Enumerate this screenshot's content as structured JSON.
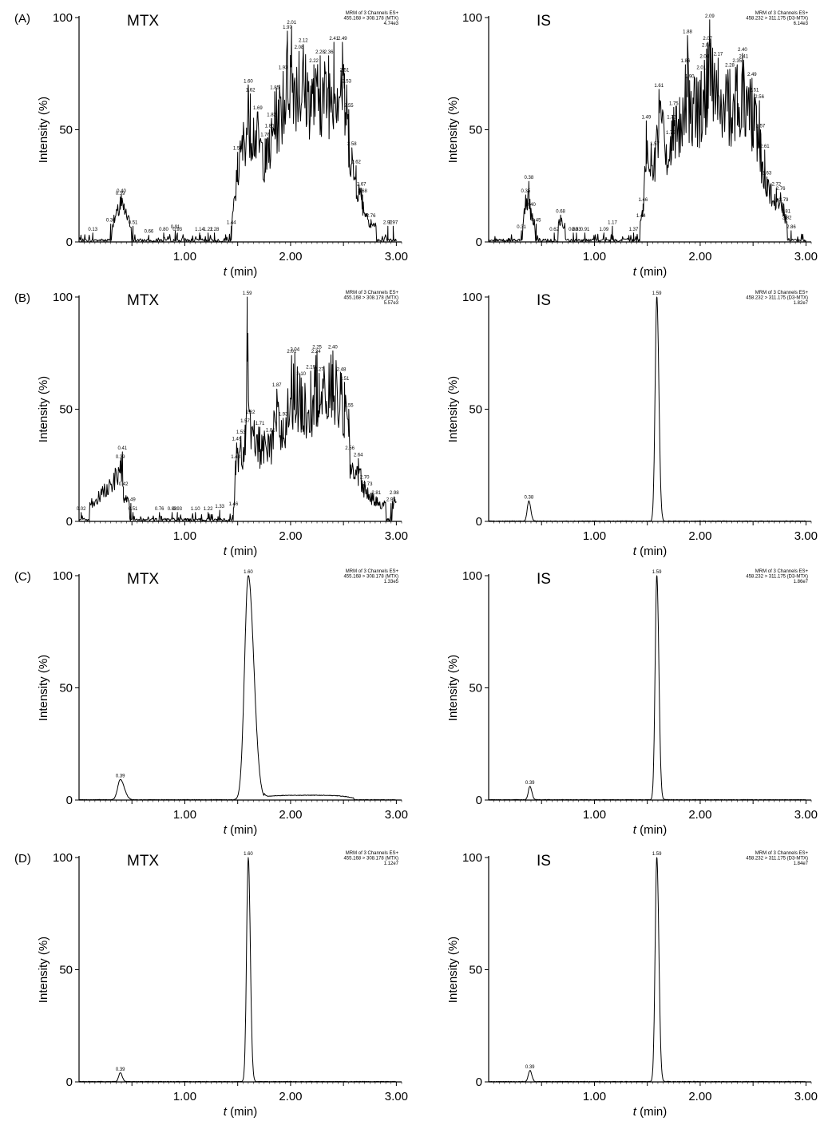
{
  "figure": {
    "x_axis_label_italic": "t",
    "x_axis_label_rest": " (min)",
    "y_axis_label": "Intensity (%)"
  },
  "chart_data": [
    {
      "type": "line",
      "row_label": "(A)",
      "name": "MTX",
      "header": [
        "MRM of 3 Channels ES+",
        "455.168 > 308.178 (MTX)",
        "4.74e3"
      ],
      "xlim": [
        0,
        3.05
      ],
      "ylim": [
        0,
        100
      ],
      "x_ticks": [
        "1.00",
        "2.00",
        "3.00"
      ],
      "y_ticks": [
        "0",
        "50",
        "100"
      ],
      "shape": "noise",
      "peaks": [
        [
          0.13,
          4
        ],
        [
          0.3,
          8
        ],
        [
          0.39,
          20
        ],
        [
          0.4,
          21
        ],
        [
          0.51,
          7
        ],
        [
          0.66,
          3
        ],
        [
          0.8,
          4
        ],
        [
          0.91,
          5
        ],
        [
          0.93,
          4
        ],
        [
          1.14,
          4
        ],
        [
          1.22,
          4
        ],
        [
          1.28,
          4
        ],
        [
          1.44,
          7
        ],
        [
          1.5,
          40
        ],
        [
          1.6,
          70
        ],
        [
          1.62,
          66
        ],
        [
          1.69,
          58
        ],
        [
          1.76,
          46
        ],
        [
          1.8,
          50
        ],
        [
          1.82,
          55
        ],
        [
          1.85,
          67
        ],
        [
          1.93,
          76
        ],
        [
          1.97,
          94
        ],
        [
          2.01,
          96
        ],
        [
          2.08,
          85
        ],
        [
          2.12,
          88
        ],
        [
          2.22,
          79
        ],
        [
          2.28,
          83
        ],
        [
          2.36,
          83
        ],
        [
          2.41,
          89
        ],
        [
          2.49,
          89
        ],
        [
          2.51,
          75
        ],
        [
          2.53,
          70
        ],
        [
          2.55,
          59
        ],
        [
          2.58,
          42
        ],
        [
          2.62,
          34
        ],
        [
          2.67,
          24
        ],
        [
          2.68,
          21
        ],
        [
          2.76,
          10
        ],
        [
          2.92,
          7
        ],
        [
          2.97,
          7
        ]
      ],
      "labels": [
        "0.13",
        "0.30",
        "0.39",
        "0.40",
        "0.51",
        "0.66",
        "0.80",
        "0.91",
        "0.93",
        "1.14",
        "1.22",
        "1.28",
        "1.44",
        "1.50",
        "1.60",
        "1.62",
        "1.69",
        "1.76",
        "1.80",
        "1.82",
        "1.85",
        "1.93",
        "1.97",
        "2.01",
        "2.08",
        "2.12",
        "2.22",
        "2.28",
        "2.36",
        "2.41",
        "2.49",
        "2.51",
        "2.53",
        "2.55",
        "2.58",
        "2.62",
        "2.67",
        "2.68",
        "2.76",
        "2.92",
        "2.97"
      ]
    },
    {
      "type": "line",
      "row_label": "",
      "name": "IS",
      "header": [
        "MRM of 3 Channels ES+",
        "458.232 > 311.175 (D3-MTX)",
        "6.14e3"
      ],
      "xlim": [
        0,
        3.05
      ],
      "ylim": [
        0,
        100
      ],
      "x_ticks": [
        "1.00",
        "2.00",
        "3.00"
      ],
      "y_ticks": [
        "0",
        "50",
        "100"
      ],
      "shape": "noise",
      "peaks": [
        [
          0.31,
          5
        ],
        [
          0.35,
          21
        ],
        [
          0.38,
          27
        ],
        [
          0.4,
          15
        ],
        [
          0.45,
          8
        ],
        [
          0.62,
          4
        ],
        [
          0.68,
          12
        ],
        [
          0.8,
          4
        ],
        [
          0.83,
          4
        ],
        [
          0.91,
          4
        ],
        [
          1.09,
          4
        ],
        [
          1.17,
          7
        ],
        [
          1.37,
          4
        ],
        [
          1.44,
          10
        ],
        [
          1.46,
          17
        ],
        [
          1.49,
          54
        ],
        [
          1.57,
          42
        ],
        [
          1.61,
          68
        ],
        [
          1.72,
          47
        ],
        [
          1.73,
          54
        ],
        [
          1.75,
          60
        ],
        [
          1.86,
          79
        ],
        [
          1.88,
          92
        ],
        [
          1.9,
          72
        ],
        [
          2.01,
          76
        ],
        [
          2.04,
          81
        ],
        [
          2.06,
          86
        ],
        [
          2.07,
          89
        ],
        [
          2.09,
          99
        ],
        [
          2.17,
          82
        ],
        [
          2.28,
          77
        ],
        [
          2.35,
          79
        ],
        [
          2.4,
          84
        ],
        [
          2.41,
          81
        ],
        [
          2.49,
          73
        ],
        [
          2.51,
          66
        ],
        [
          2.56,
          63
        ],
        [
          2.57,
          50
        ],
        [
          2.61,
          41
        ],
        [
          2.63,
          29
        ],
        [
          2.72,
          24
        ],
        [
          2.76,
          22
        ],
        [
          2.79,
          17
        ],
        [
          2.81,
          12
        ],
        [
          2.82,
          9
        ],
        [
          2.86,
          5
        ]
      ],
      "labels": [
        "0.31",
        "0.35",
        "0.38",
        "0.40",
        "0.45",
        "0.62",
        "0.68",
        "0.80",
        "0.83",
        "0.91",
        "1.09",
        "1.17",
        "1.37",
        "1.44",
        "1.46",
        "1.49",
        "1.57",
        "1.61",
        "1.72",
        "1.73",
        "1.75",
        "1.86",
        "1.88",
        "1.90",
        "2.01",
        "2.04",
        "2.06",
        "2.07",
        "2.09",
        "2.17",
        "2.28",
        "2.35",
        "2.40",
        "2.41",
        "2.49",
        "2.51",
        "2.56",
        "2.57",
        "2.61",
        "2.63",
        "2.72",
        "2.76",
        "2.79",
        "2.81",
        "2.82",
        "2.86"
      ]
    },
    {
      "type": "line",
      "row_label": "(B)",
      "name": "MTX",
      "header": [
        "MRM of 3 Channels ES+",
        "455.168 > 308.178 (MTX)",
        "5.57e3"
      ],
      "xlim": [
        0,
        3.05
      ],
      "ylim": [
        0,
        100
      ],
      "x_ticks": [
        "1.00",
        "2.00",
        "3.00"
      ],
      "y_ticks": [
        "0",
        "50",
        "100"
      ],
      "shape": "noise",
      "peaks": [
        [
          0.02,
          4
        ],
        [
          0.39,
          27
        ],
        [
          0.41,
          31
        ],
        [
          0.42,
          15
        ],
        [
          0.49,
          8
        ],
        [
          0.51,
          4
        ],
        [
          0.76,
          4
        ],
        [
          0.88,
          4
        ],
        [
          0.93,
          4
        ],
        [
          1.1,
          4
        ],
        [
          1.22,
          4
        ],
        [
          1.33,
          5
        ],
        [
          1.46,
          6
        ],
        [
          1.48,
          27
        ],
        [
          1.49,
          35
        ],
        [
          1.53,
          38
        ],
        [
          1.57,
          43
        ],
        [
          1.59,
          100
        ],
        [
          1.62,
          47
        ],
        [
          1.71,
          42
        ],
        [
          1.81,
          39
        ],
        [
          1.87,
          59
        ],
        [
          1.93,
          46
        ],
        [
          2.01,
          74
        ],
        [
          2.04,
          75
        ],
        [
          2.1,
          64
        ],
        [
          2.19,
          67
        ],
        [
          2.24,
          74
        ],
        [
          2.25,
          76
        ],
        [
          2.27,
          66
        ],
        [
          2.4,
          76
        ],
        [
          2.48,
          66
        ],
        [
          2.51,
          62
        ],
        [
          2.55,
          50
        ],
        [
          2.56,
          31
        ],
        [
          2.64,
          28
        ],
        [
          2.7,
          18
        ],
        [
          2.73,
          15
        ],
        [
          2.81,
          11
        ],
        [
          2.95,
          8
        ],
        [
          2.98,
          11
        ]
      ],
      "labels": [
        "0.02",
        "0.39",
        "0.41",
        "0.42",
        "0.49",
        "0.51",
        "0.76",
        "0.88",
        "0.93",
        "1.10",
        "1.22",
        "1.33",
        "1.46",
        "1.48",
        "1.49",
        "1.53",
        "1.57",
        "1.59",
        "1.62",
        "1.71",
        "1.81",
        "1.87",
        "1.93",
        "2.01",
        "2.04",
        "2.10",
        "2.19",
        "2.24",
        "2.25",
        "2.27",
        "2.40",
        "2.48",
        "2.51",
        "2.55",
        "2.56",
        "2.64",
        "2.70",
        "2.73",
        "2.81",
        "2.95",
        "2.98"
      ]
    },
    {
      "type": "line",
      "row_label": "",
      "name": "IS",
      "header": [
        "MRM of 3 Channels ES+",
        "458.232 > 311.175 (D3-MTX)",
        "1.82e7"
      ],
      "xlim": [
        0,
        3.05
      ],
      "ylim": [
        0,
        100
      ],
      "x_ticks": [
        "1.00",
        "2.00",
        "3.00"
      ],
      "y_ticks": [
        "0",
        "50",
        "100"
      ],
      "shape": "peaks",
      "peaks": [
        [
          0.38,
          9
        ],
        [
          1.59,
          100
        ]
      ],
      "labels": [
        "0.38",
        "1.59"
      ]
    },
    {
      "type": "line",
      "row_label": "(C)",
      "name": "MTX",
      "header": [
        "MRM of 3 Channels ES+",
        "455.168 > 308.178 (MTX)",
        "1.33e5"
      ],
      "xlim": [
        0,
        3.05
      ],
      "ylim": [
        0,
        100
      ],
      "x_ticks": [
        "1.00",
        "2.00",
        "3.00"
      ],
      "y_ticks": [
        "0",
        "50",
        "100"
      ],
      "shape": "peaks-broad",
      "peaks": [
        [
          0.39,
          9
        ],
        [
          1.6,
          100
        ]
      ],
      "labels": [
        "0.39",
        "1.60"
      ]
    },
    {
      "type": "line",
      "row_label": "",
      "name": "IS",
      "header": [
        "MRM of 3 Channels ES+",
        "458.232 > 311.175 (D3-MTX)",
        "1.86e7"
      ],
      "xlim": [
        0,
        3.05
      ],
      "ylim": [
        0,
        100
      ],
      "x_ticks": [
        "1.00",
        "2.00",
        "3.00"
      ],
      "y_ticks": [
        "0",
        "50",
        "100"
      ],
      "shape": "peaks",
      "peaks": [
        [
          0.39,
          6
        ],
        [
          1.59,
          100
        ]
      ],
      "labels": [
        "0.39",
        "1.59"
      ]
    },
    {
      "type": "line",
      "row_label": "(D)",
      "name": "MTX",
      "header": [
        "MRM of 3 Channels ES+",
        "455.168 > 308.178 (MTX)",
        "1.12e7"
      ],
      "xlim": [
        0,
        3.05
      ],
      "ylim": [
        0,
        100
      ],
      "x_ticks": [
        "1.00",
        "2.00",
        "3.00"
      ],
      "y_ticks": [
        "0",
        "50",
        "100"
      ],
      "shape": "peaks",
      "peaks": [
        [
          0.39,
          4
        ],
        [
          1.6,
          100
        ]
      ],
      "labels": [
        "0.39",
        "1.60"
      ]
    },
    {
      "type": "line",
      "row_label": "",
      "name": "IS",
      "header": [
        "MRM of 3 Channels ES+",
        "458.232 > 311.175 (D3-MTX)",
        "1.84e7"
      ],
      "xlim": [
        0,
        3.05
      ],
      "ylim": [
        0,
        100
      ],
      "x_ticks": [
        "1.00",
        "2.00",
        "3.00"
      ],
      "y_ticks": [
        "0",
        "50",
        "100"
      ],
      "shape": "peaks",
      "peaks": [
        [
          0.39,
          5
        ],
        [
          1.59,
          100
        ]
      ],
      "labels": [
        "0.39",
        "1.59"
      ]
    }
  ]
}
